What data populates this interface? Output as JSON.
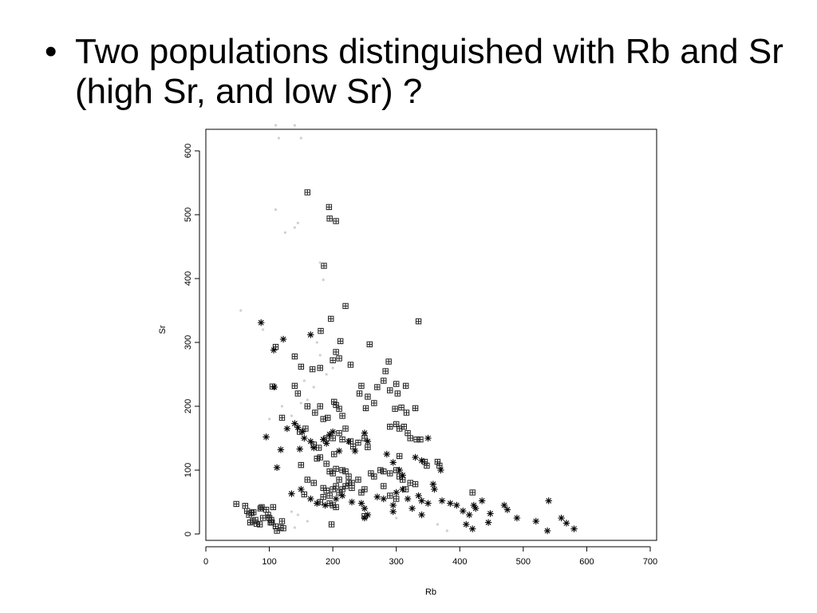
{
  "slide": {
    "bullet_symbol": "•",
    "bullet_text": "Two populations distinguished with Rb and Sr (high Sr, and low Sr) ?"
  },
  "chart_data": {
    "type": "scatter",
    "title": "",
    "xlabel": "Rb",
    "ylabel": "Sr",
    "xlim": [
      0,
      700
    ],
    "ylim": [
      0,
      640
    ],
    "x_ticks": [
      0,
      100,
      200,
      300,
      400,
      500,
      600,
      700
    ],
    "y_ticks": [
      0,
      100,
      200,
      300,
      400,
      500,
      600
    ],
    "grid": false,
    "legend": "none",
    "series": [
      {
        "marker": "boxed-plus",
        "color": "#222222",
        "points": [
          [
            48,
            47
          ],
          [
            62,
            44
          ],
          [
            65,
            36
          ],
          [
            68,
            30
          ],
          [
            72,
            33
          ],
          [
            75,
            34
          ],
          [
            70,
            18
          ],
          [
            74,
            20
          ],
          [
            78,
            22
          ],
          [
            80,
            16
          ],
          [
            85,
            15
          ],
          [
            88,
            42
          ],
          [
            86,
            40
          ],
          [
            95,
            38
          ],
          [
            98,
            30
          ],
          [
            100,
            25
          ],
          [
            103,
            22
          ],
          [
            104,
            18
          ],
          [
            106,
            42
          ],
          [
            110,
            12
          ],
          [
            112,
            5
          ],
          [
            118,
            10
          ],
          [
            120,
            20
          ],
          [
            122,
            9
          ],
          [
            102,
            18
          ],
          [
            90,
            25
          ],
          [
            160,
            535
          ],
          [
            194,
            512
          ],
          [
            195,
            494
          ],
          [
            205,
            490
          ],
          [
            186,
            420
          ],
          [
            220,
            357
          ],
          [
            335,
            333
          ],
          [
            197,
            337
          ],
          [
            181,
            318
          ],
          [
            110,
            293
          ],
          [
            140,
            278
          ],
          [
            150,
            262
          ],
          [
            168,
            258
          ],
          [
            180,
            260
          ],
          [
            200,
            272
          ],
          [
            205,
            285
          ],
          [
            210,
            275
          ],
          [
            212,
            302
          ],
          [
            228,
            265
          ],
          [
            258,
            297
          ],
          [
            283,
            255
          ],
          [
            288,
            270
          ],
          [
            105,
            231
          ],
          [
            140,
            232
          ],
          [
            145,
            220
          ],
          [
            160,
            200
          ],
          [
            172,
            190
          ],
          [
            180,
            200
          ],
          [
            185,
            180
          ],
          [
            192,
            182
          ],
          [
            202,
            207
          ],
          [
            205,
            202
          ],
          [
            210,
            196
          ],
          [
            215,
            185
          ],
          [
            220,
            165
          ],
          [
            245,
            232
          ],
          [
            242,
            220
          ],
          [
            252,
            197
          ],
          [
            255,
            215
          ],
          [
            265,
            205
          ],
          [
            270,
            230
          ],
          [
            280,
            240
          ],
          [
            290,
            225
          ],
          [
            300,
            235
          ],
          [
            302,
            220
          ],
          [
            308,
            198
          ],
          [
            315,
            232
          ],
          [
            316,
            190
          ],
          [
            330,
            197
          ],
          [
            298,
            196
          ],
          [
            120,
            182
          ],
          [
            148,
            160
          ],
          [
            157,
            165
          ],
          [
            170,
            140
          ],
          [
            178,
            135
          ],
          [
            190,
            150
          ],
          [
            200,
            150
          ],
          [
            202,
            125
          ],
          [
            210,
            158
          ],
          [
            215,
            148
          ],
          [
            228,
            145
          ],
          [
            232,
            137
          ],
          [
            240,
            143
          ],
          [
            250,
            150
          ],
          [
            255,
            136
          ],
          [
            290,
            168
          ],
          [
            300,
            172
          ],
          [
            305,
            165
          ],
          [
            312,
            168
          ],
          [
            318,
            158
          ],
          [
            322,
            150
          ],
          [
            332,
            148
          ],
          [
            338,
            148
          ],
          [
            348,
            107
          ],
          [
            365,
            113
          ],
          [
            368,
            107
          ],
          [
            345,
            113
          ],
          [
            305,
            122
          ],
          [
            175,
            118
          ],
          [
            180,
            120
          ],
          [
            190,
            110
          ],
          [
            195,
            98
          ],
          [
            200,
            95
          ],
          [
            205,
            102
          ],
          [
            210,
            85
          ],
          [
            215,
            100
          ],
          [
            220,
            98
          ],
          [
            225,
            90
          ],
          [
            230,
            80
          ],
          [
            240,
            85
          ],
          [
            260,
            95
          ],
          [
            265,
            90
          ],
          [
            275,
            100
          ],
          [
            280,
            98
          ],
          [
            290,
            95
          ],
          [
            300,
            100
          ],
          [
            305,
            90
          ],
          [
            310,
            85
          ],
          [
            150,
            108
          ],
          [
            160,
            85
          ],
          [
            170,
            80
          ],
          [
            185,
            72
          ],
          [
            190,
            68
          ],
          [
            195,
            60
          ],
          [
            200,
            70
          ],
          [
            205,
            75
          ],
          [
            210,
            65
          ],
          [
            215,
            70
          ],
          [
            220,
            75
          ],
          [
            225,
            80
          ],
          [
            230,
            72
          ],
          [
            245,
            65
          ],
          [
            250,
            70
          ],
          [
            280,
            75
          ],
          [
            290,
            60
          ],
          [
            300,
            55
          ],
          [
            315,
            70
          ],
          [
            322,
            80
          ],
          [
            330,
            78
          ],
          [
            185,
            58
          ],
          [
            195,
            48
          ],
          [
            200,
            45
          ],
          [
            205,
            42
          ],
          [
            180,
            50
          ],
          [
            155,
            62
          ],
          [
            198,
            15
          ],
          [
            250,
            28
          ],
          [
            420,
            65
          ]
        ]
      },
      {
        "marker": "asterisk",
        "color": "#000000",
        "points": [
          [
            87,
            331
          ],
          [
            122,
            305
          ],
          [
            107,
            288
          ],
          [
            165,
            312
          ],
          [
            108,
            230
          ],
          [
            128,
            165
          ],
          [
            95,
            152
          ],
          [
            118,
            132
          ],
          [
            112,
            104
          ],
          [
            148,
            133
          ],
          [
            152,
            160
          ],
          [
            145,
            167
          ],
          [
            140,
            173
          ],
          [
            155,
            150
          ],
          [
            165,
            145
          ],
          [
            170,
            135
          ],
          [
            185,
            148
          ],
          [
            190,
            142
          ],
          [
            195,
            156
          ],
          [
            200,
            160
          ],
          [
            210,
            130
          ],
          [
            225,
            145
          ],
          [
            235,
            130
          ],
          [
            250,
            158
          ],
          [
            255,
            145
          ],
          [
            285,
            125
          ],
          [
            295,
            112
          ],
          [
            305,
            100
          ],
          [
            310,
            92
          ],
          [
            330,
            120
          ],
          [
            340,
            115
          ],
          [
            350,
            150
          ],
          [
            135,
            63
          ],
          [
            150,
            70
          ],
          [
            165,
            55
          ],
          [
            175,
            48
          ],
          [
            188,
            45
          ],
          [
            205,
            55
          ],
          [
            215,
            60
          ],
          [
            230,
            50
          ],
          [
            245,
            48
          ],
          [
            250,
            40
          ],
          [
            255,
            30
          ],
          [
            270,
            58
          ],
          [
            280,
            55
          ],
          [
            295,
            45
          ],
          [
            300,
            65
          ],
          [
            310,
            70
          ],
          [
            318,
            55
          ],
          [
            335,
            60
          ],
          [
            340,
            52
          ],
          [
            350,
            48
          ],
          [
            358,
            78
          ],
          [
            360,
            70
          ],
          [
            370,
            100
          ],
          [
            372,
            52
          ],
          [
            385,
            48
          ],
          [
            395,
            45
          ],
          [
            405,
            36
          ],
          [
            415,
            30
          ],
          [
            422,
            45
          ],
          [
            425,
            40
          ],
          [
            435,
            52
          ],
          [
            445,
            18
          ],
          [
            448,
            32
          ],
          [
            470,
            45
          ],
          [
            475,
            38
          ],
          [
            490,
            25
          ],
          [
            520,
            20
          ],
          [
            538,
            5
          ],
          [
            540,
            52
          ],
          [
            560,
            25
          ],
          [
            568,
            17
          ],
          [
            580,
            8
          ],
          [
            410,
            15
          ],
          [
            420,
            8
          ],
          [
            340,
            30
          ],
          [
            325,
            40
          ],
          [
            295,
            35
          ],
          [
            250,
            25
          ]
        ]
      },
      {
        "marker": "dot",
        "color": "#d0d0d0",
        "points": [
          [
            110,
            640
          ],
          [
            115,
            620
          ],
          [
            140,
            640
          ],
          [
            150,
            620
          ],
          [
            110,
            508
          ],
          [
            125,
            472
          ],
          [
            140,
            480
          ],
          [
            145,
            487
          ],
          [
            180,
            425
          ],
          [
            185,
            398
          ],
          [
            55,
            350
          ],
          [
            100,
            180
          ],
          [
            150,
            205
          ],
          [
            160,
            210
          ],
          [
            175,
            300
          ],
          [
            180,
            280
          ],
          [
            190,
            250
          ],
          [
            120,
            200
          ],
          [
            135,
            185
          ],
          [
            170,
            230
          ],
          [
            155,
            240
          ],
          [
            200,
            260
          ],
          [
            160,
            20
          ],
          [
            140,
            10
          ],
          [
            135,
            35
          ],
          [
            145,
            30
          ],
          [
            380,
            5
          ],
          [
            365,
            15
          ],
          [
            300,
            25
          ],
          [
            90,
            320
          ]
        ]
      }
    ]
  }
}
